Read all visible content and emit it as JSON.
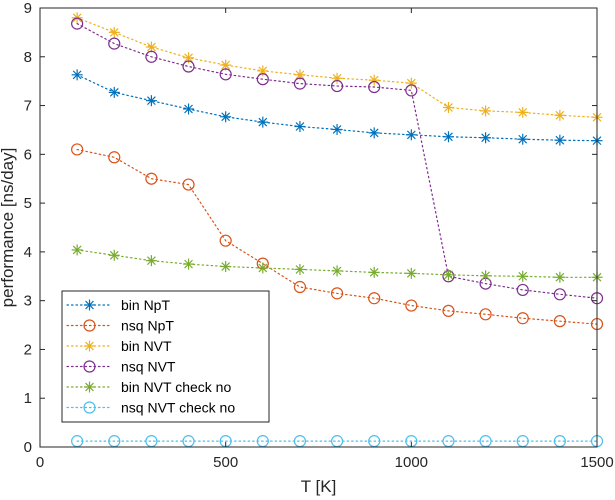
{
  "chart_data": {
    "type": "line",
    "title": "",
    "xlabel": "T [K]",
    "ylabel": "performance [ns/day]",
    "xlim": [
      0,
      1500
    ],
    "ylim": [
      0,
      9
    ],
    "xticks": [
      0,
      500,
      1000,
      1500
    ],
    "yticks": [
      0,
      1,
      2,
      3,
      4,
      5,
      6,
      7,
      8,
      9
    ],
    "grid": false,
    "legend_position": "bottom-left",
    "x": [
      100,
      200,
      300,
      400,
      500,
      600,
      700,
      800,
      900,
      1000,
      1100,
      1200,
      1300,
      1400,
      1500
    ],
    "series": [
      {
        "name": "bin NpT",
        "color": "#0072BD",
        "marker": "asterisk",
        "values": [
          7.63,
          7.27,
          7.1,
          6.93,
          6.77,
          6.66,
          6.57,
          6.51,
          6.44,
          6.4,
          6.36,
          6.34,
          6.31,
          6.29,
          6.28
        ]
      },
      {
        "name": "nsq NpT",
        "color": "#D95319",
        "marker": "circle",
        "values": [
          6.1,
          5.94,
          5.5,
          5.38,
          4.23,
          3.76,
          3.28,
          3.15,
          3.05,
          2.9,
          2.79,
          2.72,
          2.64,
          2.58,
          2.52
        ]
      },
      {
        "name": "bin NVT",
        "color": "#EDB120",
        "marker": "asterisk",
        "values": [
          8.8,
          8.5,
          8.2,
          7.98,
          7.83,
          7.71,
          7.63,
          7.56,
          7.52,
          7.46,
          6.96,
          6.89,
          6.86,
          6.8,
          6.76
        ]
      },
      {
        "name": "nsq NVT",
        "color": "#7E2F8E",
        "marker": "circle",
        "values": [
          8.68,
          8.27,
          8.0,
          7.8,
          7.64,
          7.54,
          7.45,
          7.4,
          7.38,
          7.31,
          3.5,
          3.35,
          3.22,
          3.13,
          3.05
        ]
      },
      {
        "name": "bin NVT check no",
        "color": "#77AC30",
        "marker": "asterisk",
        "values": [
          4.04,
          3.93,
          3.82,
          3.75,
          3.7,
          3.67,
          3.64,
          3.61,
          3.58,
          3.56,
          3.53,
          3.51,
          3.5,
          3.48,
          3.48
        ]
      },
      {
        "name": "nsq NVT check no",
        "color": "#4DBEEE",
        "marker": "circle",
        "values": [
          0.12,
          0.12,
          0.12,
          0.12,
          0.12,
          0.12,
          0.12,
          0.12,
          0.12,
          0.12,
          0.12,
          0.12,
          0.12,
          0.12,
          0.12
        ]
      }
    ]
  }
}
